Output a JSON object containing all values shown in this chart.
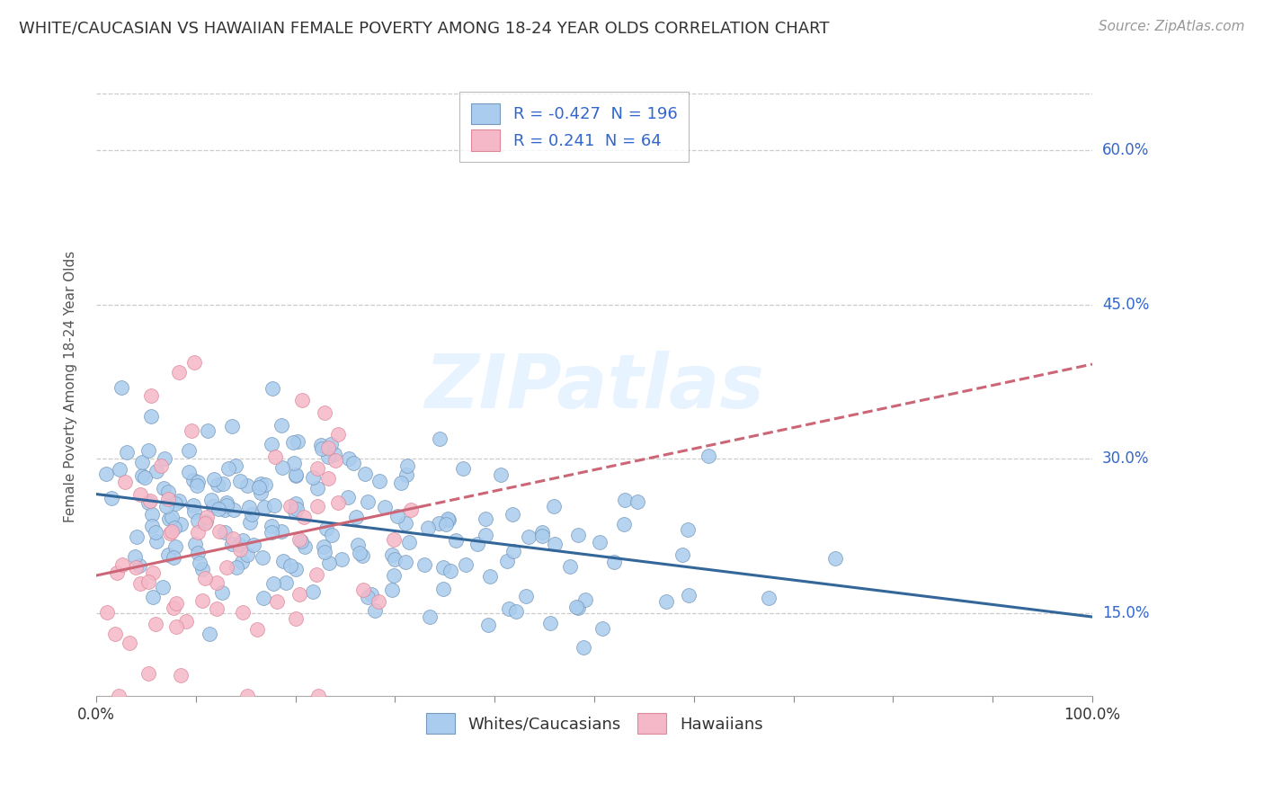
{
  "title": "WHITE/CAUCASIAN VS HAWAIIAN FEMALE POVERTY AMONG 18-24 YEAR OLDS CORRELATION CHART",
  "source": "Source: ZipAtlas.com",
  "ylabel": "Female Poverty Among 18-24 Year Olds",
  "xlim": [
    0,
    1.0
  ],
  "ylim": [
    0.07,
    0.67
  ],
  "xticks": [
    0.0,
    0.1,
    0.2,
    0.3,
    0.4,
    0.5,
    0.6,
    0.7,
    0.8,
    0.9,
    1.0
  ],
  "xticklabels_show": {
    "0.0": "0.0%",
    "1.0": "100.0%"
  },
  "yticks": [
    0.15,
    0.3,
    0.45,
    0.6
  ],
  "yticklabels": [
    "15.0%",
    "30.0%",
    "45.0%",
    "60.0%"
  ],
  "grid_color": "#cccccc",
  "background_color": "#ffffff",
  "blue_color": "#aaccee",
  "blue_edge_color": "#7799bb",
  "pink_color": "#f5b8c8",
  "pink_edge_color": "#dd8899",
  "blue_line_color": "#336699",
  "pink_line_color": "#cc6677",
  "watermark_color": "#ddeeff",
  "tick_color": "#3366cc",
  "legend_R_blue": "-0.427",
  "legend_N_blue": "196",
  "legend_R_pink": " 0.241",
  "legend_N_pink": " 64",
  "blue_R": -0.427,
  "blue_N": 196,
  "pink_R": 0.241,
  "pink_N": 64,
  "title_fontsize": 13,
  "axis_label_fontsize": 11,
  "tick_fontsize": 12,
  "legend_fontsize": 13,
  "source_fontsize": 11
}
